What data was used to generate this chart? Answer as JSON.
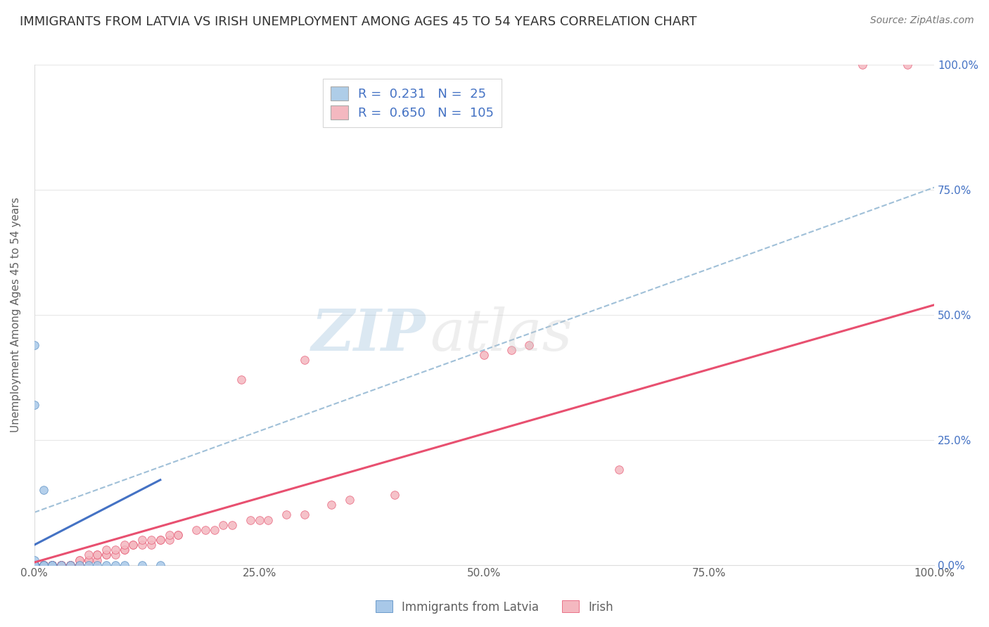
{
  "title": "IMMIGRANTS FROM LATVIA VS IRISH UNEMPLOYMENT AMONG AGES 45 TO 54 YEARS CORRELATION CHART",
  "source": "Source: ZipAtlas.com",
  "ylabel": "Unemployment Among Ages 45 to 54 years",
  "xlim": [
    0,
    1
  ],
  "ylim": [
    0,
    1
  ],
  "xticks": [
    0.0,
    0.25,
    0.5,
    0.75,
    1.0
  ],
  "yticks": [
    0.0,
    0.25,
    0.5,
    0.75,
    1.0
  ],
  "tick_labels": [
    "0.0%",
    "25.0%",
    "50.0%",
    "75.0%",
    "100.0%"
  ],
  "blue_scatter": [
    [
      0.0,
      0.44
    ],
    [
      0.0,
      0.32
    ],
    [
      0.0,
      0.01
    ],
    [
      0.0,
      0.0
    ],
    [
      0.0,
      0.0
    ],
    [
      0.0,
      0.0
    ],
    [
      0.0,
      0.0
    ],
    [
      0.0,
      0.0
    ],
    [
      0.0,
      0.0
    ],
    [
      0.0,
      0.0
    ],
    [
      0.01,
      0.15
    ],
    [
      0.01,
      0.0
    ],
    [
      0.01,
      0.0
    ],
    [
      0.02,
      0.0
    ],
    [
      0.02,
      0.0
    ],
    [
      0.03,
      0.0
    ],
    [
      0.04,
      0.0
    ],
    [
      0.05,
      0.0
    ],
    [
      0.06,
      0.0
    ],
    [
      0.07,
      0.0
    ],
    [
      0.08,
      0.0
    ],
    [
      0.09,
      0.0
    ],
    [
      0.1,
      0.0
    ],
    [
      0.12,
      0.0
    ],
    [
      0.14,
      0.0
    ]
  ],
  "pink_scatter": [
    [
      0.0,
      0.0
    ],
    [
      0.0,
      0.0
    ],
    [
      0.0,
      0.0
    ],
    [
      0.0,
      0.0
    ],
    [
      0.0,
      0.0
    ],
    [
      0.0,
      0.0
    ],
    [
      0.0,
      0.0
    ],
    [
      0.0,
      0.0
    ],
    [
      0.0,
      0.0
    ],
    [
      0.0,
      0.0
    ],
    [
      0.0,
      0.0
    ],
    [
      0.0,
      0.0
    ],
    [
      0.0,
      0.0
    ],
    [
      0.0,
      0.0
    ],
    [
      0.0,
      0.0
    ],
    [
      0.0,
      0.0
    ],
    [
      0.0,
      0.0
    ],
    [
      0.0,
      0.0
    ],
    [
      0.0,
      0.0
    ],
    [
      0.0,
      0.0
    ],
    [
      0.0,
      0.0
    ],
    [
      0.0,
      0.0
    ],
    [
      0.0,
      0.0
    ],
    [
      0.0,
      0.0
    ],
    [
      0.0,
      0.0
    ],
    [
      0.0,
      0.0
    ],
    [
      0.01,
      0.0
    ],
    [
      0.01,
      0.0
    ],
    [
      0.01,
      0.0
    ],
    [
      0.01,
      0.0
    ],
    [
      0.01,
      0.0
    ],
    [
      0.01,
      0.0
    ],
    [
      0.01,
      0.0
    ],
    [
      0.01,
      0.0
    ],
    [
      0.01,
      0.0
    ],
    [
      0.01,
      0.0
    ],
    [
      0.02,
      0.0
    ],
    [
      0.02,
      0.0
    ],
    [
      0.02,
      0.0
    ],
    [
      0.02,
      0.0
    ],
    [
      0.02,
      0.0
    ],
    [
      0.02,
      0.0
    ],
    [
      0.02,
      0.0
    ],
    [
      0.02,
      0.0
    ],
    [
      0.02,
      0.0
    ],
    [
      0.03,
      0.0
    ],
    [
      0.03,
      0.0
    ],
    [
      0.03,
      0.0
    ],
    [
      0.03,
      0.0
    ],
    [
      0.03,
      0.0
    ],
    [
      0.03,
      0.0
    ],
    [
      0.04,
      0.0
    ],
    [
      0.04,
      0.0
    ],
    [
      0.04,
      0.0
    ],
    [
      0.04,
      0.0
    ],
    [
      0.05,
      0.0
    ],
    [
      0.05,
      0.0
    ],
    [
      0.05,
      0.01
    ],
    [
      0.05,
      0.01
    ],
    [
      0.06,
      0.01
    ],
    [
      0.06,
      0.01
    ],
    [
      0.06,
      0.02
    ],
    [
      0.07,
      0.01
    ],
    [
      0.07,
      0.02
    ],
    [
      0.07,
      0.02
    ],
    [
      0.08,
      0.02
    ],
    [
      0.08,
      0.02
    ],
    [
      0.08,
      0.03
    ],
    [
      0.09,
      0.02
    ],
    [
      0.09,
      0.03
    ],
    [
      0.1,
      0.03
    ],
    [
      0.1,
      0.03
    ],
    [
      0.1,
      0.04
    ],
    [
      0.11,
      0.04
    ],
    [
      0.11,
      0.04
    ],
    [
      0.12,
      0.04
    ],
    [
      0.12,
      0.05
    ],
    [
      0.13,
      0.04
    ],
    [
      0.13,
      0.05
    ],
    [
      0.14,
      0.05
    ],
    [
      0.14,
      0.05
    ],
    [
      0.15,
      0.05
    ],
    [
      0.15,
      0.06
    ],
    [
      0.16,
      0.06
    ],
    [
      0.16,
      0.06
    ],
    [
      0.18,
      0.07
    ],
    [
      0.19,
      0.07
    ],
    [
      0.2,
      0.07
    ],
    [
      0.21,
      0.08
    ],
    [
      0.22,
      0.08
    ],
    [
      0.23,
      0.37
    ],
    [
      0.24,
      0.09
    ],
    [
      0.25,
      0.09
    ],
    [
      0.26,
      0.09
    ],
    [
      0.28,
      0.1
    ],
    [
      0.3,
      0.1
    ],
    [
      0.3,
      0.41
    ],
    [
      0.33,
      0.12
    ],
    [
      0.35,
      0.13
    ],
    [
      0.4,
      0.14
    ],
    [
      0.5,
      0.42
    ],
    [
      0.53,
      0.43
    ],
    [
      0.55,
      0.44
    ],
    [
      0.65,
      0.19
    ],
    [
      0.92,
      1.0
    ],
    [
      0.97,
      1.0
    ]
  ],
  "blue_line_x": [
    0.0,
    0.14
  ],
  "blue_line_y": [
    0.04,
    0.17
  ],
  "pink_line_x": [
    0.0,
    1.0
  ],
  "pink_line_y": [
    0.005,
    0.52
  ],
  "dashed_line_x": [
    0.0,
    1.0
  ],
  "dashed_line_y": [
    0.105,
    0.755
  ],
  "legend_entries": [
    {
      "label": "R =  0.231   N =  25",
      "color": "#aecde8"
    },
    {
      "label": "R =  0.650   N =  105",
      "color": "#f4b8c0"
    }
  ],
  "scatter_blue_color": "#a8c8e8",
  "scatter_blue_edge": "#5a8fc4",
  "scatter_pink_color": "#f4b8c0",
  "scatter_pink_edge": "#e8607a",
  "line_blue_color": "#4472c4",
  "line_pink_color": "#e85070",
  "dashed_line_color": "#a0c0d8",
  "r_n_color": "#4472c4",
  "grid_color": "#e8e8e8",
  "background_color": "#ffffff",
  "title_fontsize": 13,
  "source_fontsize": 10,
  "axis_label_color": "#606060",
  "tick_color": "#606060",
  "right_tick_color": "#4472c4"
}
